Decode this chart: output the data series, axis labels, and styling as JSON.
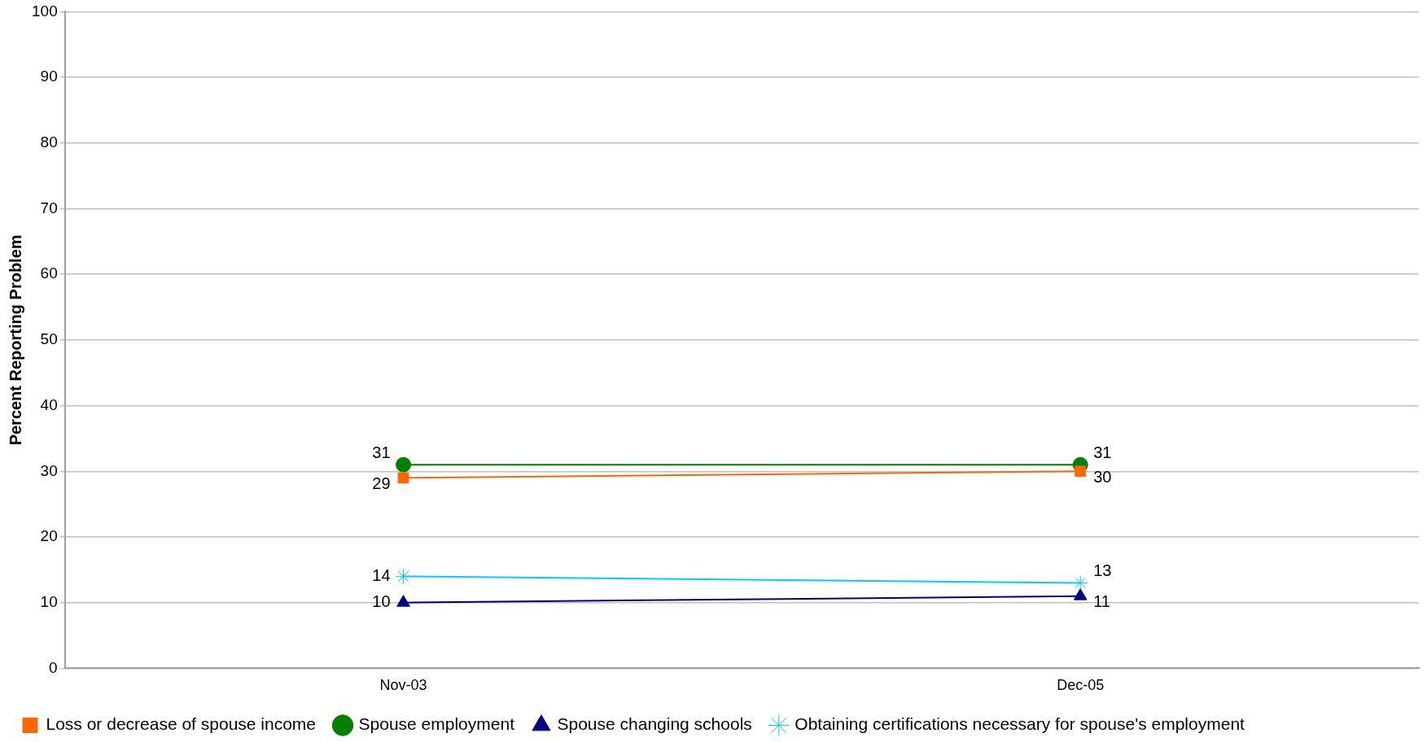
{
  "chart_data": {
    "type": "line",
    "ylabel": "Percent Reporting Problem",
    "categories": [
      "Nov-03",
      "Dec-05"
    ],
    "series": [
      {
        "name": "Loss or decrease of spouse income",
        "color": "#ff6600",
        "values": [
          29,
          30
        ],
        "marker": "square"
      },
      {
        "name": "Spouse employment",
        "color": "#008000",
        "values": [
          31,
          31
        ],
        "marker": "circle"
      },
      {
        "name": "Spouse changing schools",
        "color": "#000080",
        "values": [
          10,
          11
        ],
        "marker": "triangle"
      },
      {
        "name": "Obtaining certifications necessary for spouse's employment",
        "color": "#00ccff",
        "values": [
          14,
          13
        ],
        "marker": "cross"
      }
    ],
    "ylim": [
      0,
      100
    ],
    "yticks": [
      0,
      10,
      20,
      30,
      40,
      50,
      60,
      70,
      80,
      90,
      100
    ],
    "grid": "y",
    "legend": "bottom",
    "data_labels": true,
    "line_style": "solid"
  }
}
